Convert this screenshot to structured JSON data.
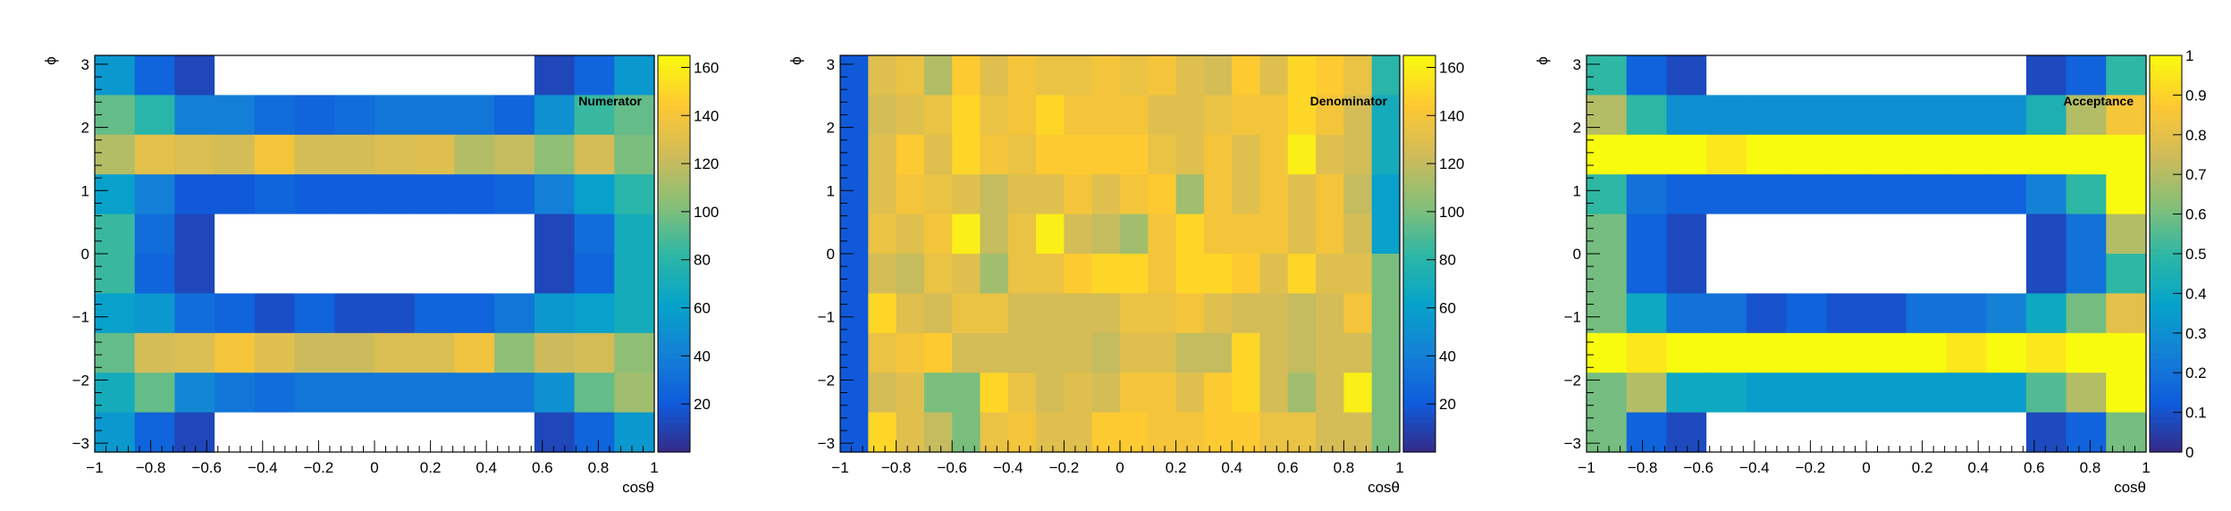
{
  "colormap_stops": [
    "#352a87",
    "#0f5cdd",
    "#1481d6",
    "#06a4ca",
    "#2eb7a4",
    "#87bf77",
    "#d1bb59",
    "#fec832",
    "#f9fb0e"
  ],
  "empty_color": "#ffffff",
  "chart_data": [
    {
      "type": "heatmap",
      "title": "Numerator",
      "xlabel": "cosθ",
      "ylabel": "ϕ",
      "xlim": [
        -1,
        1
      ],
      "ylim": [
        -3.14,
        3.14
      ],
      "xticks": [
        "−1",
        "−0.8",
        "−0.6",
        "−0.4",
        "−0.2",
        "0",
        "0.2",
        "0.4",
        "0.6",
        "0.8",
        "1"
      ],
      "yticks": [
        "−3",
        "−2",
        "−1",
        "0",
        "1",
        "2",
        "3"
      ],
      "nx": 14,
      "ny": 10,
      "zlim": [
        0,
        165
      ],
      "zticks": [
        "20",
        "40",
        "60",
        "80",
        "100",
        "120",
        "140",
        "160"
      ],
      "values": [
        [
          55,
          25,
          12,
          null,
          null,
          null,
          null,
          null,
          null,
          null,
          null,
          12,
          25,
          55
        ],
        [
          95,
          80,
          40,
          40,
          30,
          25,
          30,
          35,
          35,
          35,
          25,
          50,
          85,
          95
        ],
        [
          115,
          132,
          128,
          125,
          140,
          125,
          125,
          128,
          130,
          115,
          120,
          105,
          125,
          100
        ],
        [
          60,
          40,
          20,
          20,
          25,
          22,
          22,
          22,
          22,
          22,
          25,
          40,
          60,
          80
        ],
        [
          85,
          30,
          12,
          null,
          null,
          null,
          null,
          null,
          null,
          null,
          null,
          12,
          30,
          70
        ],
        [
          85,
          25,
          12,
          null,
          null,
          null,
          null,
          null,
          null,
          null,
          null,
          12,
          25,
          70
        ],
        [
          60,
          55,
          30,
          25,
          15,
          25,
          15,
          15,
          25,
          25,
          35,
          55,
          60,
          70
        ],
        [
          95,
          125,
          128,
          140,
          130,
          122,
          122,
          128,
          128,
          138,
          105,
          122,
          125,
          105
        ],
        [
          70,
          95,
          45,
          35,
          30,
          35,
          35,
          35,
          35,
          35,
          35,
          50,
          95,
          110
        ],
        [
          55,
          25,
          12,
          null,
          null,
          null,
          null,
          null,
          null,
          null,
          null,
          12,
          25,
          55
        ]
      ]
    },
    {
      "type": "heatmap",
      "title": "Denominator",
      "xlabel": "cosθ",
      "ylabel": "ϕ",
      "xlim": [
        -1,
        1
      ],
      "ylim": [
        -3.14,
        3.14
      ],
      "xticks": [
        "−1",
        "−0.8",
        "−0.6",
        "−0.4",
        "−0.2",
        "0",
        "0.2",
        "0.4",
        "0.6",
        "0.8",
        "1"
      ],
      "yticks": [
        "−3",
        "−2",
        "−1",
        "0",
        "1",
        "2",
        "3"
      ],
      "nx": 20,
      "ny": 10,
      "zlim": [
        0,
        165
      ],
      "zticks": [
        "20",
        "40",
        "60",
        "80",
        "100",
        "120",
        "140",
        "160"
      ],
      "values": [
        [
          20,
          130,
          135,
          115,
          145,
          130,
          140,
          135,
          135,
          140,
          135,
          140,
          130,
          125,
          145,
          130,
          150,
          145,
          135,
          80
        ],
        [
          20,
          125,
          130,
          135,
          150,
          135,
          140,
          150,
          140,
          140,
          140,
          130,
          130,
          135,
          140,
          140,
          150,
          140,
          125,
          70
        ],
        [
          20,
          130,
          145,
          130,
          150,
          140,
          135,
          145,
          145,
          145,
          145,
          135,
          130,
          140,
          130,
          140,
          160,
          130,
          125,
          70
        ],
        [
          20,
          130,
          140,
          135,
          130,
          120,
          130,
          130,
          140,
          130,
          140,
          145,
          110,
          140,
          130,
          140,
          130,
          140,
          120,
          60
        ],
        [
          20,
          135,
          130,
          140,
          160,
          120,
          135,
          160,
          125,
          120,
          110,
          140,
          150,
          140,
          140,
          140,
          130,
          140,
          125,
          60
        ],
        [
          20,
          125,
          120,
          135,
          130,
          110,
          135,
          135,
          145,
          150,
          150,
          140,
          150,
          150,
          145,
          130,
          150,
          130,
          130,
          100
        ],
        [
          20,
          150,
          130,
          125,
          135,
          135,
          125,
          125,
          125,
          125,
          135,
          135,
          140,
          130,
          125,
          125,
          120,
          125,
          140,
          100
        ],
        [
          20,
          135,
          140,
          145,
          125,
          125,
          125,
          125,
          125,
          120,
          130,
          130,
          120,
          120,
          150,
          125,
          120,
          125,
          125,
          100
        ],
        [
          20,
          125,
          130,
          100,
          100,
          150,
          135,
          125,
          130,
          125,
          140,
          140,
          130,
          145,
          150,
          125,
          110,
          125,
          160,
          100
        ],
        [
          20,
          150,
          130,
          120,
          100,
          135,
          140,
          130,
          130,
          145,
          145,
          140,
          140,
          145,
          145,
          135,
          135,
          125,
          125,
          100
        ]
      ]
    },
    {
      "type": "heatmap",
      "title": "Acceptance",
      "xlabel": "cosθ",
      "ylabel": "ϕ",
      "xlim": [
        -1,
        1
      ],
      "ylim": [
        -3.14,
        3.14
      ],
      "xticks": [
        "−1",
        "−0.8",
        "−0.6",
        "−0.4",
        "−0.2",
        "0",
        "0.2",
        "0.4",
        "0.6",
        "0.8",
        "1"
      ],
      "yticks": [
        "−3",
        "−2",
        "−1",
        "0",
        "1",
        "2",
        "3"
      ],
      "nx": 14,
      "ny": 10,
      "zlim": [
        0,
        1
      ],
      "zticks": [
        "0",
        "0.1",
        "0.2",
        "0.3",
        "0.4",
        "0.5",
        "0.6",
        "0.7",
        "0.8",
        "0.9",
        "1"
      ],
      "values": [
        [
          0.5,
          0.15,
          0.08,
          null,
          null,
          null,
          null,
          null,
          null,
          null,
          null,
          0.08,
          0.15,
          0.5
        ],
        [
          0.7,
          0.5,
          0.3,
          0.3,
          0.3,
          0.3,
          0.3,
          0.3,
          0.3,
          0.3,
          0.3,
          0.45,
          0.7,
          0.85
        ],
        [
          1,
          1,
          1,
          0.95,
          1,
          1,
          1,
          1,
          1,
          1,
          1,
          1,
          1,
          1
        ],
        [
          0.5,
          0.2,
          0.15,
          0.15,
          0.15,
          0.15,
          0.15,
          0.15,
          0.15,
          0.15,
          0.15,
          0.25,
          0.5,
          1
        ],
        [
          0.6,
          0.15,
          0.08,
          null,
          null,
          null,
          null,
          null,
          null,
          null,
          null,
          0.08,
          0.2,
          0.7
        ],
        [
          0.6,
          0.15,
          0.08,
          null,
          null,
          null,
          null,
          null,
          null,
          null,
          null,
          0.08,
          0.2,
          0.5
        ],
        [
          0.6,
          0.4,
          0.2,
          0.2,
          0.1,
          0.15,
          0.1,
          0.1,
          0.2,
          0.2,
          0.25,
          0.4,
          0.6,
          0.8
        ],
        [
          1,
          0.95,
          1,
          1,
          1,
          1,
          1,
          1,
          1,
          0.95,
          1,
          0.95,
          1,
          1
        ],
        [
          0.6,
          0.7,
          0.4,
          0.4,
          0.35,
          0.35,
          0.35,
          0.35,
          0.35,
          0.35,
          0.35,
          0.55,
          0.7,
          1
        ],
        [
          0.6,
          0.15,
          0.08,
          null,
          null,
          null,
          null,
          null,
          null,
          null,
          null,
          0.08,
          0.15,
          0.6
        ]
      ]
    }
  ]
}
